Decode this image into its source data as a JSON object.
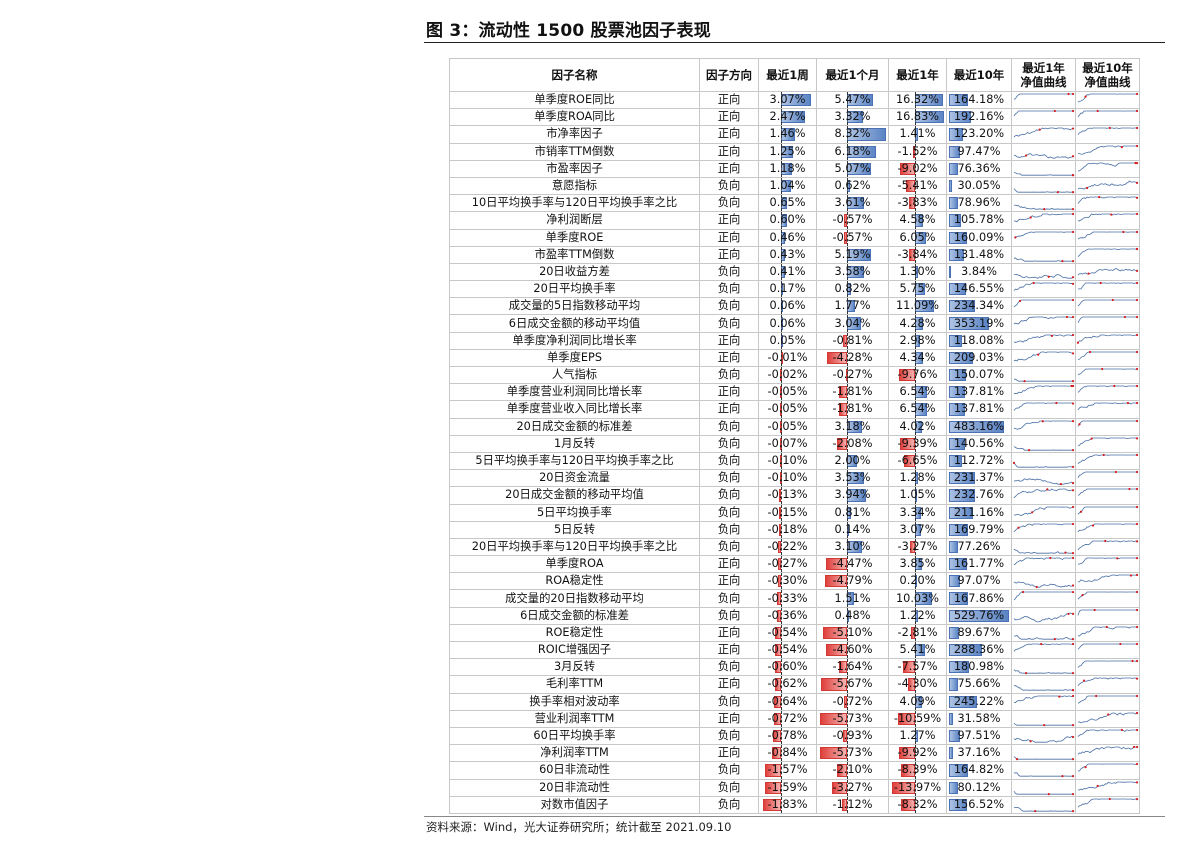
{
  "title": "图 3：流动性 1500 股票池因子表现",
  "source": "资料来源：Wind，光大证券研究所；统计截至 2021.09.10",
  "colors": {
    "positive": "#5b84c4",
    "negative": "#e0403c",
    "spark": "#4a6fa5",
    "spark_marker": "#d7191c"
  },
  "headers": {
    "name": "因子名称",
    "direction": "因子方向",
    "w1": "最近1周",
    "m1": "最近1个月",
    "y1": "最近1年",
    "y10": "最近10年",
    "nav1_l1": "最近1年",
    "nav1_l2": "净值曲线",
    "nav10_l1": "最近10年",
    "nav10_l2": "净值曲线"
  },
  "rows": [
    {
      "name": "单季度ROE同比",
      "dir": "正向",
      "w1": "3.07%",
      "m1": "5.47%",
      "y1": "16.32%",
      "y10": "164.18%"
    },
    {
      "name": "单季度ROA同比",
      "dir": "正向",
      "w1": "2.47%",
      "m1": "3.32%",
      "y1": "16.83%",
      "y10": "192.16%"
    },
    {
      "name": "市净率因子",
      "dir": "正向",
      "w1": "1.46%",
      "m1": "8.32%",
      "y1": "1.41%",
      "y10": "123.20%"
    },
    {
      "name": "市销率TTM倒数",
      "dir": "正向",
      "w1": "1.25%",
      "m1": "6.18%",
      "y1": "-1.52%",
      "y10": "97.47%"
    },
    {
      "name": "市盈率因子",
      "dir": "正向",
      "w1": "1.18%",
      "m1": "5.07%",
      "y1": "-9.02%",
      "y10": "76.36%"
    },
    {
      "name": "意愿指标",
      "dir": "负向",
      "w1": "1.04%",
      "m1": "0.62%",
      "y1": "-5.41%",
      "y10": "30.05%"
    },
    {
      "name": "10日平均换手率与120日平均换手率之比",
      "dir": "负向",
      "w1": "0.65%",
      "m1": "3.61%",
      "y1": "-3.83%",
      "y10": "78.96%"
    },
    {
      "name": "净利润断层",
      "dir": "正向",
      "w1": "0.60%",
      "m1": "-0.57%",
      "y1": "4.58%",
      "y10": "105.78%"
    },
    {
      "name": "单季度ROE",
      "dir": "正向",
      "w1": "0.46%",
      "m1": "-0.57%",
      "y1": "6.05%",
      "y10": "160.09%"
    },
    {
      "name": "市盈率TTM倒数",
      "dir": "正向",
      "w1": "0.43%",
      "m1": "5.19%",
      "y1": "-3.84%",
      "y10": "131.48%"
    },
    {
      "name": "20日收益方差",
      "dir": "负向",
      "w1": "0.41%",
      "m1": "3.58%",
      "y1": "1.30%",
      "y10": "3.84%"
    },
    {
      "name": "20日平均换手率",
      "dir": "负向",
      "w1": "0.17%",
      "m1": "0.82%",
      "y1": "5.75%",
      "y10": "146.55%"
    },
    {
      "name": "成交量的5日指数移动平均",
      "dir": "负向",
      "w1": "0.06%",
      "m1": "1.77%",
      "y1": "11.09%",
      "y10": "234.34%"
    },
    {
      "name": "6日成交金额的移动平均值",
      "dir": "负向",
      "w1": "0.06%",
      "m1": "3.04%",
      "y1": "4.28%",
      "y10": "353.19%"
    },
    {
      "name": "单季度净利润同比增长率",
      "dir": "正向",
      "w1": "0.05%",
      "m1": "-0.81%",
      "y1": "2.98%",
      "y10": "118.08%"
    },
    {
      "name": "单季度EPS",
      "dir": "正向",
      "w1": "-0.01%",
      "m1": "-4.28%",
      "y1": "4.34%",
      "y10": "209.03%"
    },
    {
      "name": "人气指标",
      "dir": "负向",
      "w1": "-0.02%",
      "m1": "-0.27%",
      "y1": "-9.76%",
      "y10": "150.07%"
    },
    {
      "name": "单季度营业利润同比增长率",
      "dir": "正向",
      "w1": "-0.05%",
      "m1": "-1.81%",
      "y1": "6.54%",
      "y10": "137.81%"
    },
    {
      "name": "单季度营业收入同比增长率",
      "dir": "正向",
      "w1": "-0.05%",
      "m1": "-1.81%",
      "y1": "6.54%",
      "y10": "137.81%"
    },
    {
      "name": "20日成交金额的标准差",
      "dir": "负向",
      "w1": "-0.05%",
      "m1": "3.18%",
      "y1": "4.02%",
      "y10": "483.16%"
    },
    {
      "name": "1月反转",
      "dir": "负向",
      "w1": "-0.07%",
      "m1": "-2.08%",
      "y1": "-9.39%",
      "y10": "140.56%"
    },
    {
      "name": "5日平均换手率与120日平均换手率之比",
      "dir": "负向",
      "w1": "-0.10%",
      "m1": "2.00%",
      "y1": "-6.65%",
      "y10": "112.72%"
    },
    {
      "name": "20日资金流量",
      "dir": "负向",
      "w1": "-0.10%",
      "m1": "3.53%",
      "y1": "1.28%",
      "y10": "231.37%"
    },
    {
      "name": "20日成交金额的移动平均值",
      "dir": "负向",
      "w1": "-0.13%",
      "m1": "3.94%",
      "y1": "1.05%",
      "y10": "232.76%"
    },
    {
      "name": "5日平均换手率",
      "dir": "负向",
      "w1": "-0.15%",
      "m1": "0.81%",
      "y1": "3.34%",
      "y10": "211.16%"
    },
    {
      "name": "5日反转",
      "dir": "负向",
      "w1": "-0.18%",
      "m1": "0.14%",
      "y1": "3.07%",
      "y10": "169.79%"
    },
    {
      "name": "20日平均换手率与120日平均换手率之比",
      "dir": "负向",
      "w1": "-0.22%",
      "m1": "3.10%",
      "y1": "-3.27%",
      "y10": "77.26%"
    },
    {
      "name": "单季度ROA",
      "dir": "正向",
      "w1": "-0.27%",
      "m1": "-4.47%",
      "y1": "3.85%",
      "y10": "161.77%"
    },
    {
      "name": "ROA稳定性",
      "dir": "正向",
      "w1": "-0.30%",
      "m1": "-4.79%",
      "y1": "0.20%",
      "y10": "97.07%"
    },
    {
      "name": "成交量的20日指数移动平均",
      "dir": "负向",
      "w1": "-0.33%",
      "m1": "1.51%",
      "y1": "10.03%",
      "y10": "167.86%"
    },
    {
      "name": "6日成交金额的标准差",
      "dir": "负向",
      "w1": "-0.36%",
      "m1": "0.48%",
      "y1": "1.22%",
      "y10": "529.76%"
    },
    {
      "name": "ROE稳定性",
      "dir": "正向",
      "w1": "-0.54%",
      "m1": "-5.10%",
      "y1": "-2.81%",
      "y10": "89.67%"
    },
    {
      "name": "ROIC增强因子",
      "dir": "正向",
      "w1": "-0.54%",
      "m1": "-4.60%",
      "y1": "5.41%",
      "y10": "288.36%"
    },
    {
      "name": "3月反转",
      "dir": "负向",
      "w1": "-0.60%",
      "m1": "-1.64%",
      "y1": "-7.57%",
      "y10": "180.98%"
    },
    {
      "name": "毛利率TTM",
      "dir": "正向",
      "w1": "-0.62%",
      "m1": "-5.67%",
      "y1": "-4.30%",
      "y10": "75.66%"
    },
    {
      "name": "换手率相对波动率",
      "dir": "负向",
      "w1": "-0.64%",
      "m1": "-0.72%",
      "y1": "4.09%",
      "y10": "245.22%"
    },
    {
      "name": "营业利润率TTM",
      "dir": "正向",
      "w1": "-0.72%",
      "m1": "-5.73%",
      "y1": "-10.59%",
      "y10": "31.58%"
    },
    {
      "name": "60日平均换手率",
      "dir": "负向",
      "w1": "-0.78%",
      "m1": "-0.93%",
      "y1": "1.27%",
      "y10": "97.51%"
    },
    {
      "name": "净利润率TTM",
      "dir": "正向",
      "w1": "-0.84%",
      "m1": "-5.73%",
      "y1": "-9.92%",
      "y10": "37.16%"
    },
    {
      "name": "60日非流动性",
      "dir": "负向",
      "w1": "-1.57%",
      "m1": "-2.10%",
      "y1": "-8.39%",
      "y10": "164.82%"
    },
    {
      "name": "20日非流动性",
      "dir": "负向",
      "w1": "-1.59%",
      "m1": "-3.27%",
      "y1": "-13.97%",
      "y10": "80.12%"
    },
    {
      "name": "对数市值因子",
      "dir": "负向",
      "w1": "-1.83%",
      "m1": "-1.12%",
      "y1": "-8.32%",
      "y10": "156.52%"
    }
  ]
}
